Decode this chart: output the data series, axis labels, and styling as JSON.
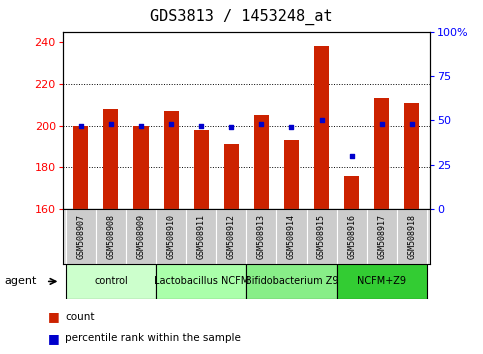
{
  "title": "GDS3813 / 1453248_at",
  "samples": [
    "GSM508907",
    "GSM508908",
    "GSM508909",
    "GSM508910",
    "GSM508911",
    "GSM508912",
    "GSM508913",
    "GSM508914",
    "GSM508915",
    "GSM508916",
    "GSM508917",
    "GSM508918"
  ],
  "count_values": [
    200,
    208,
    200,
    207,
    198,
    191,
    205,
    193,
    238,
    176,
    213,
    211
  ],
  "percentile_values": [
    47,
    48,
    47,
    48,
    47,
    46,
    48,
    46,
    50,
    30,
    48,
    48
  ],
  "bar_bottom": 160,
  "ylim_left": [
    160,
    245
  ],
  "ylim_right": [
    0,
    100
  ],
  "yticks_left": [
    160,
    180,
    200,
    220,
    240
  ],
  "yticks_right": [
    0,
    25,
    50,
    75,
    100
  ],
  "bar_color": "#cc2200",
  "dot_color": "#0000cc",
  "agent_groups": [
    {
      "label": "control",
      "start": 0,
      "end": 2,
      "color": "#ccffcc"
    },
    {
      "label": "Lactobacillus NCFM",
      "start": 3,
      "end": 5,
      "color": "#aaffaa"
    },
    {
      "label": "Bifidobacterium Z9",
      "start": 6,
      "end": 8,
      "color": "#88ee88"
    },
    {
      "label": "NCFM+Z9",
      "start": 9,
      "end": 11,
      "color": "#33cc33"
    }
  ],
  "legend_count_color": "#cc2200",
  "legend_dot_color": "#0000cc",
  "bar_width": 0.5,
  "title_fontsize": 11,
  "label_fontsize": 6,
  "agent_fontsize": 7,
  "legend_fontsize": 7.5,
  "ytick_fontsize": 8
}
